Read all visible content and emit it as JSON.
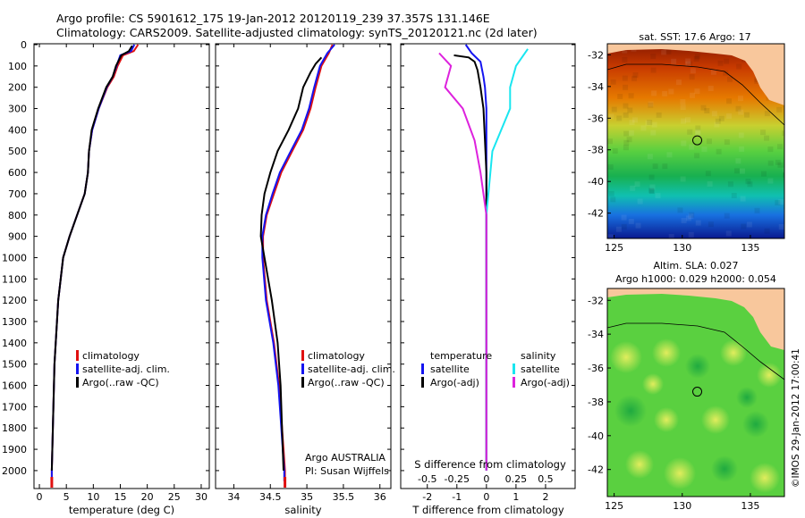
{
  "header": {
    "title_line1": "Argo profile: CS 5901612_175 19-Jan-2012 20120119_239 37.357S 131.146E",
    "title_line2": "Climatology: CARS2009. Satellite-adjusted climatology: synTS_20120121.nc (2d later)"
  },
  "colors": {
    "climatology": "#e01010",
    "satellite": "#1414f0",
    "argo": "#000000",
    "sat_salinity": "#19e6f0",
    "argo_salinity": "#dd22dd",
    "land": "#f8c79c"
  },
  "chart_data": [
    {
      "id": "temperature",
      "type": "line",
      "xlabel": "temperature (deg C)",
      "ylabel": "depth",
      "xlim": [
        -1,
        31.5
      ],
      "ylim": [
        2080,
        0
      ],
      "xticks": [
        0,
        5,
        10,
        15,
        20,
        25,
        30
      ],
      "yticks": [
        0,
        100,
        200,
        300,
        400,
        500,
        600,
        700,
        800,
        900,
        1000,
        1100,
        1200,
        1300,
        1400,
        1500,
        1600,
        1700,
        1800,
        1900,
        2000
      ],
      "legend": [
        "climatology",
        "satellite-adj. clim.",
        "Argo(..raw -QC)"
      ],
      "series": [
        {
          "name": "climatology",
          "color_key": "climatology",
          "x": [
            18.3,
            17.5,
            15.5,
            14.5,
            13.8,
            12.6,
            11.0,
            9.8,
            9.2,
            9.0,
            8.4,
            7.0,
            5.6,
            4.4,
            3.5,
            2.8,
            2.5,
            2.3,
            2.3
          ],
          "y": [
            0,
            30,
            50,
            100,
            150,
            200,
            300,
            400,
            500,
            600,
            700,
            800,
            900,
            1000,
            1200,
            1500,
            1800,
            2000,
            2050
          ]
        },
        {
          "name": "satellite-adj. clim.",
          "color_key": "satellite",
          "x": [
            17.6,
            17.0,
            15.0,
            14.3,
            13.6,
            12.5,
            11.0,
            9.8,
            9.2,
            9.0,
            8.4,
            7.0,
            5.6,
            4.4,
            3.5,
            2.8,
            2.5,
            2.3,
            2.3
          ],
          "y": [
            0,
            30,
            50,
            100,
            150,
            200,
            300,
            400,
            500,
            600,
            700,
            800,
            900,
            1000,
            1200,
            1500,
            1800,
            2000,
            2050
          ]
        },
        {
          "name": "Argo(..raw -QC)",
          "color_key": "argo",
          "x": [
            17.2,
            16.6,
            15.2,
            14.2,
            13.6,
            12.4,
            10.9,
            9.7,
            9.2,
            9.0,
            8.4,
            7.0,
            5.6,
            4.4,
            3.5,
            2.8,
            2.5,
            2.3
          ],
          "y": [
            5,
            30,
            50,
            100,
            150,
            200,
            300,
            400,
            500,
            600,
            700,
            800,
            900,
            1000,
            1200,
            1500,
            1800,
            2000
          ]
        }
      ]
    },
    {
      "id": "salinity",
      "type": "line",
      "xlabel": "salinity",
      "xlim": [
        33.75,
        36.15
      ],
      "ylim": [
        2080,
        0
      ],
      "xticks": [
        34,
        34.5,
        35,
        35.5,
        36
      ],
      "legend": [
        "climatology",
        "satellite-adj. clim.",
        "Argo(..raw -QC)"
      ],
      "annotation": [
        "Argo AUSTRALIA",
        "PI: Susan Wijffels"
      ],
      "series": [
        {
          "name": "climatology",
          "color_key": "climatology",
          "x": [
            35.35,
            35.3,
            35.2,
            35.12,
            35.05,
            34.95,
            34.8,
            34.65,
            34.55,
            34.45,
            34.4,
            34.4,
            34.45,
            34.55,
            34.62,
            34.66,
            34.68,
            34.7,
            34.7
          ],
          "y": [
            0,
            40,
            100,
            200,
            300,
            400,
            500,
            600,
            700,
            800,
            900,
            1000,
            1200,
            1400,
            1600,
            1800,
            1900,
            2000,
            2050
          ]
        },
        {
          "name": "satellite-adj. clim.",
          "color_key": "satellite",
          "x": [
            35.38,
            35.28,
            35.18,
            35.1,
            35.03,
            34.93,
            34.78,
            34.63,
            34.53,
            34.44,
            34.39,
            34.39,
            34.44,
            34.54,
            34.61,
            34.65,
            34.67,
            34.69,
            34.69
          ],
          "y": [
            0,
            40,
            100,
            200,
            300,
            400,
            500,
            600,
            700,
            800,
            900,
            1000,
            1200,
            1400,
            1600,
            1800,
            1900,
            2000,
            2050
          ]
        },
        {
          "name": "Argo(..raw -QC)",
          "color_key": "argo",
          "x": [
            35.2,
            35.12,
            35.05,
            34.95,
            34.88,
            34.75,
            34.6,
            34.5,
            34.42,
            34.38,
            34.37,
            34.42,
            34.52,
            34.6,
            34.64,
            34.66,
            34.68
          ],
          "y": [
            60,
            90,
            130,
            200,
            300,
            400,
            500,
            600,
            700,
            800,
            900,
            1000,
            1200,
            1400,
            1600,
            1800,
            2000
          ]
        }
      ]
    },
    {
      "id": "difference",
      "type": "line",
      "xlabel": "T difference from climatology",
      "x2label": "S difference from climatology",
      "xlim": [
        -2.9,
        3.0
      ],
      "x2lim": [
        -0.725,
        0.75
      ],
      "ylim": [
        2080,
        0
      ],
      "xticks": [
        -2,
        -1,
        0,
        1,
        2
      ],
      "x2ticks": [
        -0.5,
        -0.25,
        0,
        0.25,
        0.5
      ],
      "x2tick_labels": [
        "-0.5",
        "-0.25",
        "0",
        "0.25",
        "0.5"
      ],
      "legend_left_title": "temperature",
      "legend_right_title": "salinity",
      "legend_left": [
        "satellite",
        "Argo(-adj)"
      ],
      "legend_right": [
        "satellite",
        "Argo(-adj)"
      ],
      "series": [
        {
          "name": "T satellite",
          "color_key": "satellite",
          "x": [
            -0.7,
            -0.5,
            -0.2,
            -0.1,
            -0.05,
            0.0,
            0.0,
            0.0,
            0.0,
            0.0,
            0.0
          ],
          "y": [
            0,
            40,
            80,
            150,
            200,
            300,
            500,
            800,
            1200,
            1600,
            2000
          ]
        },
        {
          "name": "T Argo(-adj)",
          "color_key": "argo",
          "x": [
            -1.1,
            -0.6,
            -0.4,
            -0.3,
            -0.2,
            -0.1,
            -0.05,
            0.0,
            0.0,
            0.0
          ],
          "y": [
            50,
            60,
            80,
            120,
            200,
            300,
            450,
            600,
            1000,
            2000
          ]
        },
        {
          "name": "S satellite",
          "color_key": "sat_salinity",
          "x": [
            0.35,
            0.3,
            0.25,
            0.2,
            0.2,
            0.05,
            0.0,
            0.0,
            0.0
          ],
          "y": [
            20,
            60,
            100,
            200,
            300,
            500,
            800,
            1200,
            2000
          ]
        },
        {
          "name": "S Argo(-adj)",
          "color_key": "argo_salinity",
          "x": [
            -0.4,
            -0.3,
            -0.35,
            -0.2,
            -0.1,
            -0.05,
            0.0,
            0.0,
            0.0
          ],
          "y": [
            40,
            100,
            200,
            300,
            450,
            600,
            800,
            1200,
            2000
          ]
        }
      ]
    },
    {
      "id": "sst_map",
      "type": "heatmap",
      "title": "sat. SST: 17.6 Argo: 17",
      "xticks": [
        125,
        130,
        135
      ],
      "yticks": [
        -32,
        -34,
        -36,
        -38,
        -40,
        -42
      ],
      "xlim": [
        124.5,
        137.5
      ],
      "ylim": [
        -43.6,
        -31.3
      ],
      "argo_lon": 131.1,
      "argo_lat": -37.4
    },
    {
      "id": "sla_map",
      "type": "heatmap",
      "title_line1": "Altim. SLA: 0.027",
      "title_line2": "Argo h1000: 0.029 h2000: 0.054",
      "xticks": [
        125,
        130,
        135
      ],
      "yticks": [
        -32,
        -34,
        -36,
        -38,
        -40,
        -42
      ],
      "xlim": [
        124.5,
        137.5
      ],
      "ylim": [
        -43.6,
        -31.3
      ],
      "argo_lon": 131.1,
      "argo_lat": -37.4
    }
  ],
  "footer": {
    "watermark": "©IMOS 29-Jan-2012 17:00:41"
  }
}
